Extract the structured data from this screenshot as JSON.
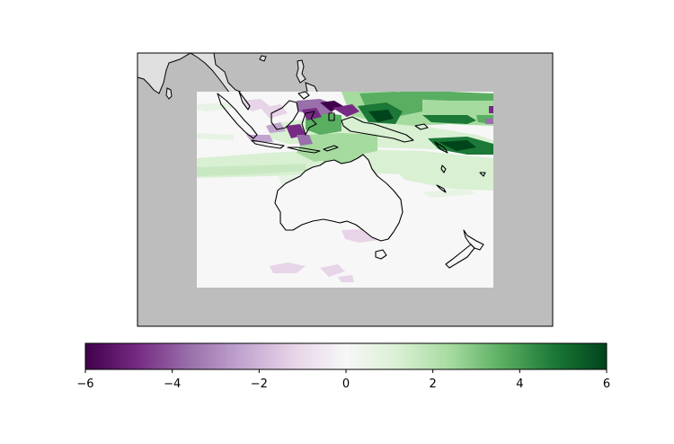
{
  "map": {
    "type": "filled-field-map",
    "projection": "plate-carree",
    "region": "Australasia / Maritime Continent",
    "land_color": "#e0e0e0",
    "background_color": "#bdbdbd",
    "nodata_color": "#f7f7f7",
    "coastline_color": "#000000"
  },
  "colorbar": {
    "colormap": "PRGn",
    "min": -6,
    "max": 6,
    "orientation": "horizontal",
    "stops": [
      "#40004b",
      "#762a83",
      "#9970ab",
      "#c2a5cf",
      "#e7d4e8",
      "#f7f7f7",
      "#d9f0d3",
      "#a6dba0",
      "#5aae61",
      "#1b7837",
      "#00441b"
    ],
    "tick_labels": [
      "−6",
      "−4",
      "−2",
      "0",
      "2",
      "4",
      "6"
    ]
  }
}
